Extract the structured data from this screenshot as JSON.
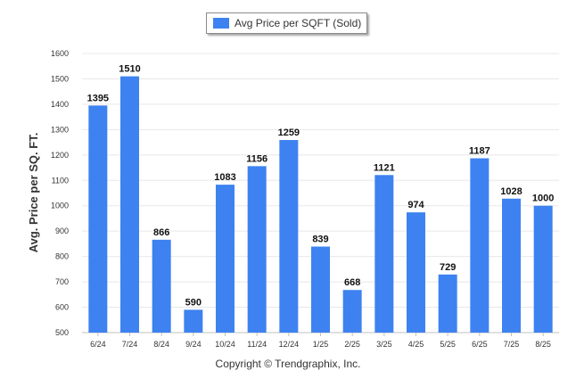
{
  "legend": {
    "label": "Avg Price per SQFT (Sold)",
    "color": "#3d82f0"
  },
  "footer": {
    "copyright": "Copyright © Trendgraphix, Inc."
  },
  "chart_data": {
    "type": "bar",
    "ylabel": "Avg. Price per SQ. FT.",
    "ylim": [
      500,
      1600
    ],
    "yticks": [
      500,
      600,
      700,
      800,
      900,
      1000,
      1100,
      1200,
      1300,
      1400,
      1500,
      1600
    ],
    "grid": true,
    "legend_position": "top-center",
    "categories": [
      "6/24",
      "7/24",
      "8/24",
      "9/24",
      "10/24",
      "11/24",
      "12/24",
      "1/25",
      "2/25",
      "3/25",
      "4/25",
      "5/25",
      "6/25",
      "7/25",
      "8/25"
    ],
    "series": [
      {
        "name": "Avg Price per SQFT (Sold)",
        "color": "#3d82f0",
        "values": [
          1395,
          1510,
          866,
          590,
          1083,
          1156,
          1259,
          839,
          668,
          1121,
          974,
          729,
          1187,
          1028,
          1000
        ]
      }
    ]
  }
}
